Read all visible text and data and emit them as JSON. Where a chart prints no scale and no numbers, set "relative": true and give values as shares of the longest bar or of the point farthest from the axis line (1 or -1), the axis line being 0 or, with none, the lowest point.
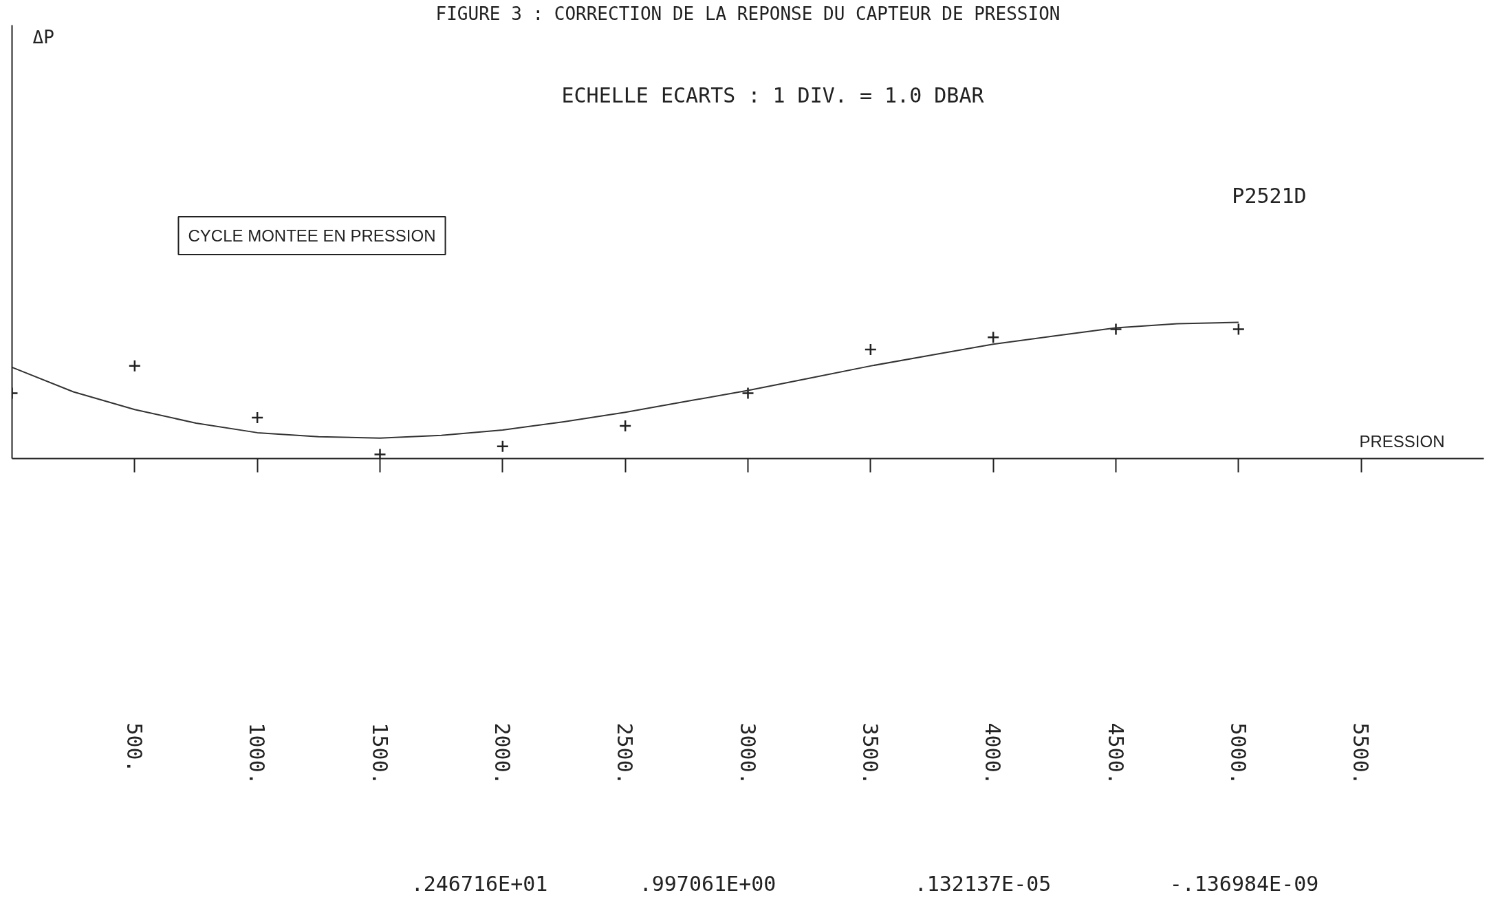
{
  "chart_data": {
    "type": "scatter",
    "title": "FIGURE 3 : CORRECTION DE LA REPONSE DU CAPTEUR DE PRESSION",
    "subtitle": "ECHELLE ECARTS : 1 DIV. = 1.0 DBAR",
    "xlabel": "PRESSION",
    "annotations": [
      "ΔP",
      "CYCLE MONTEE EN PRESSION",
      "P2521D",
      ".246716E+01",
      ".997061E+00",
      ".132137E-05",
      "-.136984E-09"
    ],
    "relative": true,
    "xlim": [
      0,
      6000
    ],
    "xticks": [
      {
        "value": 500,
        "label": "500."
      },
      {
        "value": 1000,
        "label": "1000."
      },
      {
        "value": 1500,
        "label": "1500."
      },
      {
        "value": 2000,
        "label": "2000."
      },
      {
        "value": 2500,
        "label": "2500."
      },
      {
        "value": 3000,
        "label": "3000."
      },
      {
        "value": 3500,
        "label": "3500."
      },
      {
        "value": 4000,
        "label": "4000."
      },
      {
        "value": 4500,
        "label": "4500."
      },
      {
        "value": 5000,
        "label": "5000."
      },
      {
        "value": 5500,
        "label": "5500."
      }
    ],
    "series": [
      {
        "color": "#222222",
        "marker": "cross",
        "x": [
          0,
          500,
          1000,
          1500,
          2000,
          2500,
          3000,
          3500,
          4000,
          4500,
          5000
        ],
        "values": [
          0.48,
          0.68,
          0.3,
          0.03,
          0.09,
          0.24,
          0.48,
          0.8,
          0.89,
          0.95,
          0.95
        ]
      },
      {
        "type": "line",
        "color": "#333333",
        "x": [
          0,
          250,
          500,
          750,
          1000,
          1250,
          1500,
          1750,
          2000,
          2250,
          2500,
          2750,
          3000,
          3250,
          3500,
          3750,
          4000,
          4250,
          4500,
          4750,
          5000
        ],
        "values": [
          0.67,
          0.49,
          0.36,
          0.26,
          0.19,
          0.16,
          0.15,
          0.17,
          0.21,
          0.27,
          0.34,
          0.42,
          0.5,
          0.59,
          0.68,
          0.76,
          0.84,
          0.9,
          0.96,
          0.99,
          1.0
        ]
      }
    ]
  }
}
